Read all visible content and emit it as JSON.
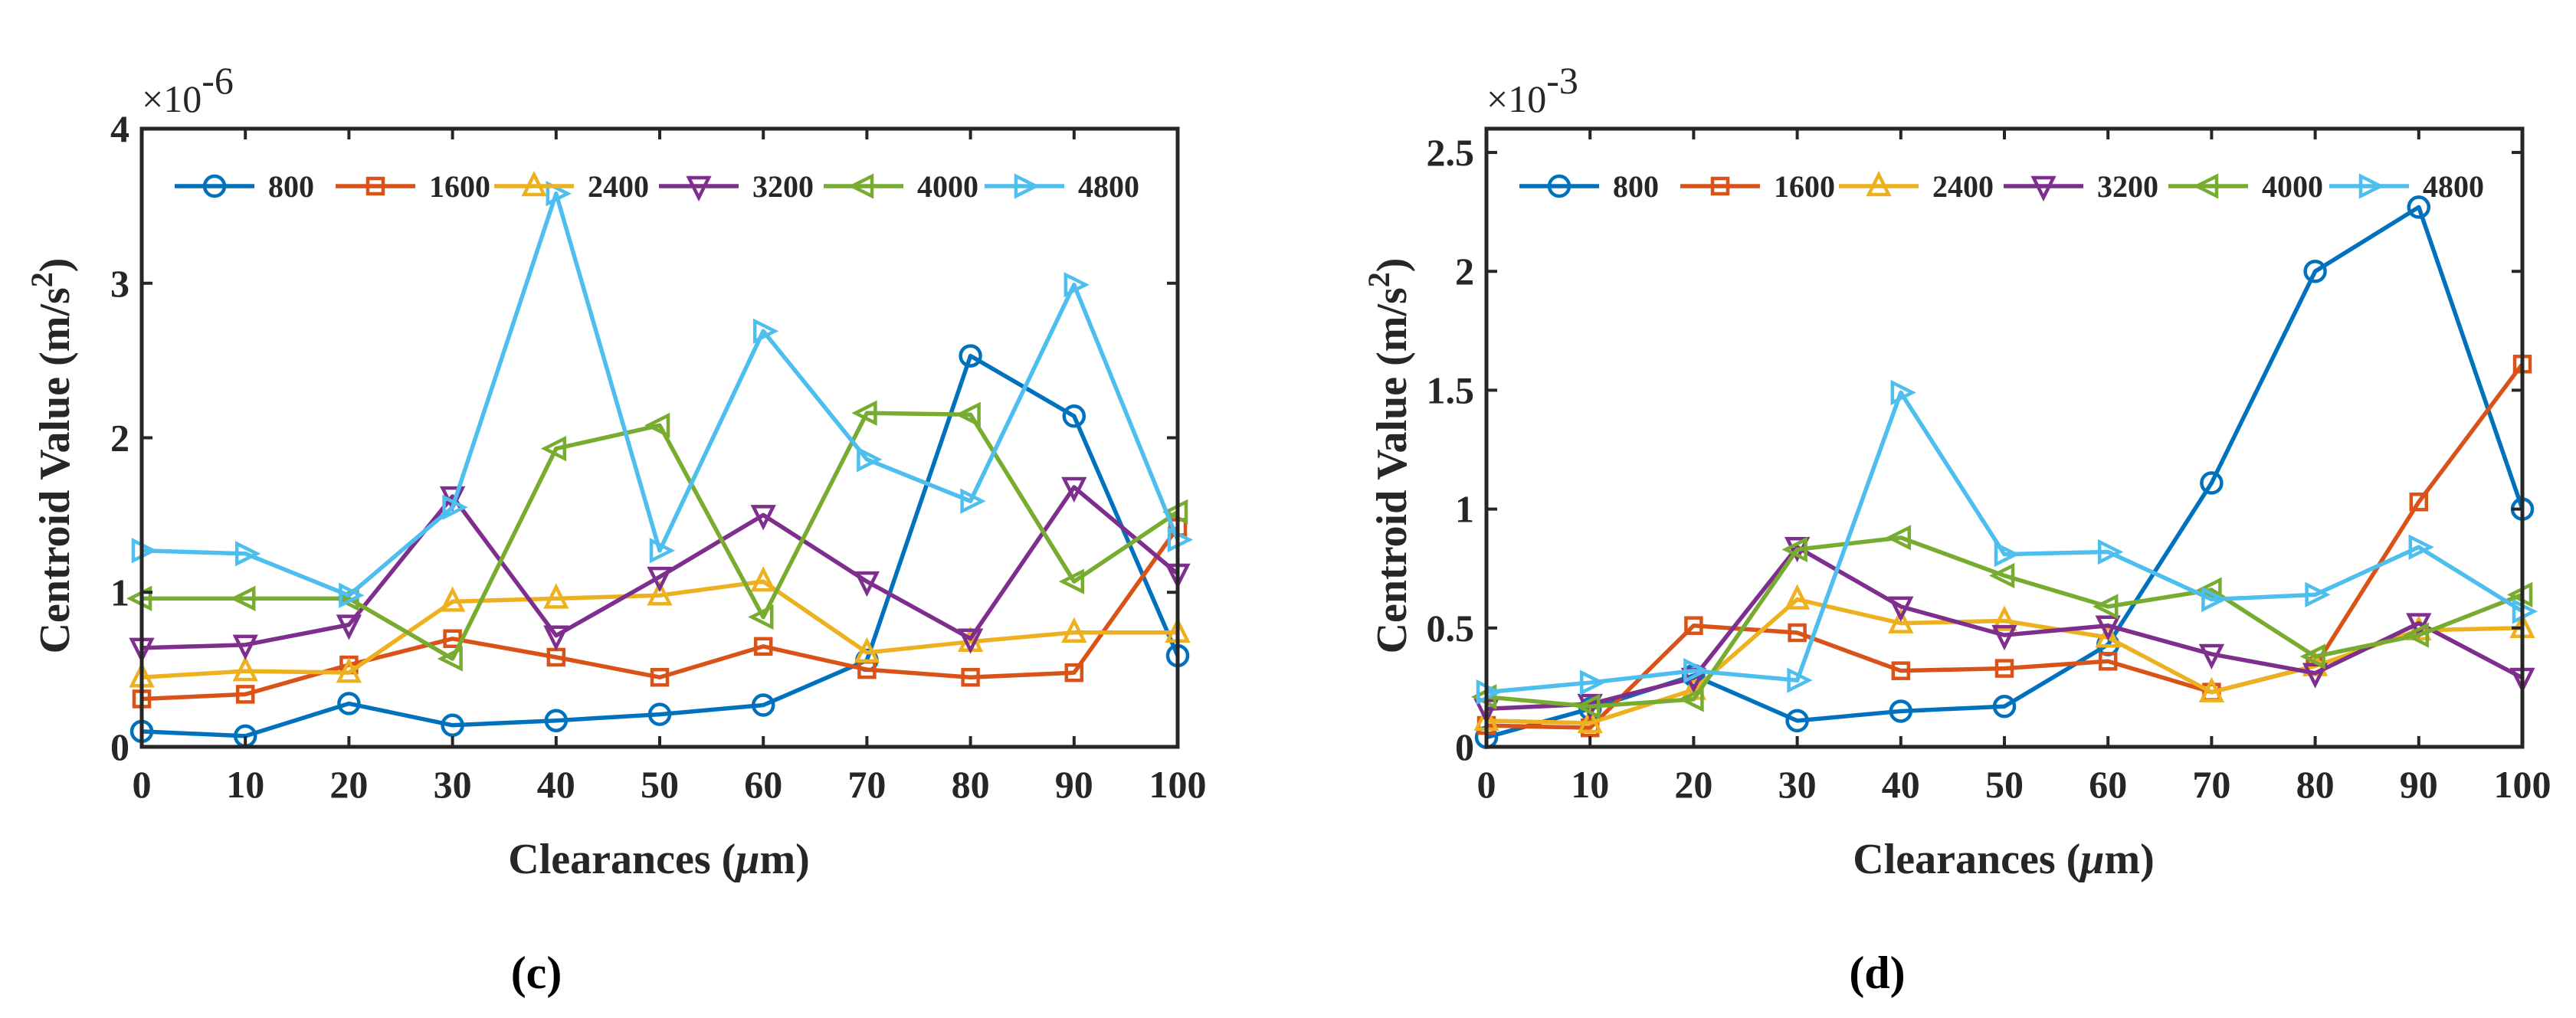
{
  "chart_data": [
    {
      "type": "line",
      "panel_label": "(c)",
      "ylabel": "Centroid Value (m/s²)",
      "ylabel_main": "Centroid Value (m/s",
      "ylabel_sup": "2",
      "ylabel_end": ")",
      "xlabel": "Clearances (μm)",
      "xlabel_main": "Clearances (",
      "xlabel_unit": "μ",
      "xlabel_end": "m)",
      "exponent_label": "×10",
      "exponent_power": "-6",
      "x": [
        0,
        10,
        20,
        30,
        40,
        50,
        60,
        70,
        80,
        90,
        100
      ],
      "xlim": [
        0,
        100
      ],
      "ylim": [
        0,
        4
      ],
      "yticks": [
        0,
        1,
        2,
        3,
        4
      ],
      "ytick_labels": [
        "0",
        "1",
        "2",
        "3",
        "4"
      ],
      "xticks": [
        0,
        10,
        20,
        30,
        40,
        50,
        60,
        70,
        80,
        90,
        100
      ],
      "xtick_labels": [
        "0",
        "10",
        "20",
        "30",
        "40",
        "50",
        "60",
        "70",
        "80",
        "90",
        "100"
      ],
      "grid": false,
      "legend_position": "top",
      "series": [
        {
          "name": "800",
          "marker": "circle",
          "color": "#0072BD",
          "values": [
            0.1,
            0.07,
            0.28,
            0.14,
            0.17,
            0.21,
            0.27,
            0.56,
            2.53,
            2.14,
            0.59
          ]
        },
        {
          "name": "1600",
          "marker": "square",
          "color": "#D95319",
          "values": [
            0.31,
            0.34,
            0.53,
            0.7,
            0.58,
            0.45,
            0.65,
            0.5,
            0.45,
            0.48,
            1.42
          ]
        },
        {
          "name": "2400",
          "marker": "triangle-up",
          "color": "#EDB120",
          "values": [
            0.45,
            0.49,
            0.48,
            0.94,
            0.96,
            0.98,
            1.07,
            0.61,
            0.68,
            0.74,
            0.74
          ]
        },
        {
          "name": "3200",
          "marker": "triangle-down",
          "color": "#7E2F8E",
          "values": [
            0.64,
            0.66,
            0.79,
            1.62,
            0.72,
            1.1,
            1.5,
            1.07,
            0.7,
            1.68,
            1.12
          ]
        },
        {
          "name": "4000",
          "marker": "triangle-left",
          "color": "#77AC30",
          "values": [
            0.96,
            0.96,
            0.96,
            0.57,
            1.93,
            2.08,
            0.84,
            2.16,
            2.15,
            1.07,
            1.52
          ]
        },
        {
          "name": "4800",
          "marker": "triangle-right",
          "color": "#4DBEEE",
          "values": [
            1.27,
            1.25,
            0.98,
            1.55,
            3.58,
            1.27,
            2.69,
            1.86,
            1.59,
            2.99,
            1.34
          ]
        }
      ]
    },
    {
      "type": "line",
      "panel_label": "(d)",
      "ylabel": "Centroid Value (m/s²)",
      "ylabel_main": "Centroid Value (m/s",
      "ylabel_sup": "2",
      "ylabel_end": ")",
      "xlabel": "Clearances (μm)",
      "xlabel_main": "Clearances (",
      "xlabel_unit": "μ",
      "xlabel_end": "m)",
      "exponent_label": "×10",
      "exponent_power": "-3",
      "x": [
        0,
        10,
        20,
        30,
        40,
        50,
        60,
        70,
        80,
        90,
        100
      ],
      "xlim": [
        0,
        100
      ],
      "ylim": [
        0,
        2.6
      ],
      "yticks": [
        0,
        0.5,
        1,
        1.5,
        2,
        2.5
      ],
      "ytick_labels": [
        "0",
        "0.5",
        "1",
        "1.5",
        "2",
        "2.5"
      ],
      "xticks": [
        0,
        10,
        20,
        30,
        40,
        50,
        60,
        70,
        80,
        90,
        100
      ],
      "xtick_labels": [
        "0",
        "10",
        "20",
        "30",
        "40",
        "50",
        "60",
        "70",
        "80",
        "90",
        "100"
      ],
      "grid": false,
      "legend_position": "top",
      "series": [
        {
          "name": "800",
          "marker": "circle",
          "color": "#0072BD",
          "values": [
            0.04,
            0.16,
            0.3,
            0.11,
            0.15,
            0.17,
            0.43,
            1.11,
            2.0,
            2.27,
            1.0
          ]
        },
        {
          "name": "1600",
          "marker": "square",
          "color": "#D95319",
          "values": [
            0.09,
            0.08,
            0.51,
            0.48,
            0.32,
            0.33,
            0.36,
            0.23,
            0.34,
            1.03,
            1.61
          ]
        },
        {
          "name": "2400",
          "marker": "triangle-up",
          "color": "#EDB120",
          "values": [
            0.11,
            0.1,
            0.24,
            0.62,
            0.52,
            0.53,
            0.46,
            0.23,
            0.34,
            0.49,
            0.5
          ]
        },
        {
          "name": "3200",
          "marker": "triangle-down",
          "color": "#7E2F8E",
          "values": [
            0.16,
            0.18,
            0.29,
            0.84,
            0.59,
            0.47,
            0.51,
            0.39,
            0.31,
            0.52,
            0.29
          ]
        },
        {
          "name": "4000",
          "marker": "triangle-left",
          "color": "#77AC30",
          "values": [
            0.21,
            0.17,
            0.2,
            0.83,
            0.88,
            0.72,
            0.59,
            0.66,
            0.38,
            0.47,
            0.64
          ]
        },
        {
          "name": "4800",
          "marker": "triangle-right",
          "color": "#4DBEEE",
          "values": [
            0.23,
            0.27,
            0.32,
            0.28,
            1.49,
            0.81,
            0.82,
            0.62,
            0.64,
            0.84,
            0.57
          ]
        }
      ]
    }
  ]
}
